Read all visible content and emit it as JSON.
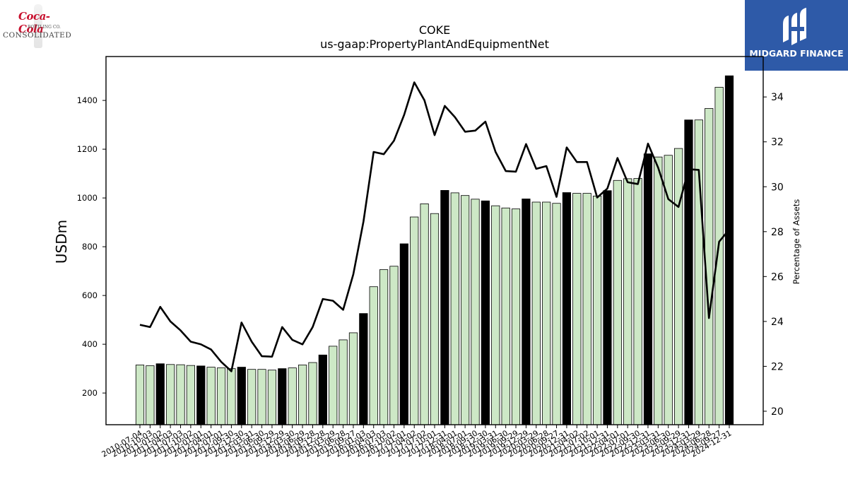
{
  "logos": {
    "left_script": "Coca-Cola",
    "left_sub": "BOTTLING CO.",
    "left_word": "CONSOLIDATED",
    "right_brand": "MIDGARD FINANCE"
  },
  "chart_data": {
    "type": "bar",
    "title": "COKE",
    "subtitle": "us-gaap:PropertyPlantAndEquipmentNet",
    "ylabel": "USDm",
    "y2label": "Percentage of Assets",
    "ylim": [
      70,
      1580
    ],
    "y2lim": [
      19.4,
      35.8
    ],
    "yticks": [
      200,
      400,
      600,
      800,
      1000,
      1200,
      1400
    ],
    "y2ticks": [
      20,
      22,
      24,
      26,
      28,
      30,
      32,
      34
    ],
    "colors": {
      "bar_light": "#cde8c6",
      "bar_dark": "#000000",
      "line": "#000000"
    },
    "categories": [
      "2010-07-04",
      "2010-10-03",
      "2011-01-02",
      "2011-04-03",
      "2011-07-03",
      "2011-10-02",
      "2012-01-01",
      "2012-04-01",
      "2012-07-01",
      "2012-09-30",
      "2012-12-30",
      "2013-03-31",
      "2013-06-30",
      "2013-09-29",
      "2013-12-29",
      "2014-03-30",
      "2014-06-29",
      "2014-09-28",
      "2014-12-28",
      "2015-03-29",
      "2015-06-28",
      "2015-09-27",
      "2016-01-03",
      "2016-04-03",
      "2016-07-03",
      "2016-10-02",
      "2017-01-01",
      "2017-04-02",
      "2017-07-02",
      "2017-10-01",
      "2017-12-31",
      "2018-04-01",
      "2018-07-01",
      "2018-09-30",
      "2018-12-30",
      "2019-03-31",
      "2019-06-30",
      "2019-09-29",
      "2019-12-29",
      "2020-03-29",
      "2020-06-28",
      "2020-09-27",
      "2020-12-31",
      "2021-04-02",
      "2021-07-02",
      "2021-10-01",
      "2021-12-31",
      "2022-04-01",
      "2022-07-01",
      "2022-09-30",
      "2022-12-31",
      "2023-03-31",
      "2023-06-30",
      "2023-09-29",
      "2023-12-31",
      "2024-03-29",
      "2024-06-28",
      "2024-09-27",
      "2024-12-31"
    ],
    "tick_labels": [
      "2010-07-04",
      "2010-10-03",
      "2011-01-02",
      "2011-04-03",
      "2011-07-03",
      "2011-10-02",
      "2012-01-01",
      "2012-04-01",
      "2012-07-01",
      "2012-09-30",
      "2012-12-30",
      "2013-03-31",
      "2013-06-30",
      "2013-09-29",
      "2013-12-29",
      "2014-03-30",
      "2014-06-29",
      "2014-09-28",
      "2014-12-28",
      "2015-03-29",
      "2015-06-28",
      "2015-09-27",
      "2016-01-03",
      "2016-04-03",
      "2016-07-03",
      "2016-10-02",
      "2017-01-01",
      "2017-04-02",
      "2017-07-02",
      "2017-10-01",
      "2017-12-31",
      "2018-04-01",
      "2018-07-01",
      "2018-09-30",
      "2018-12-30",
      "2019-03-31",
      "2019-06-30",
      "2019-09-29",
      "2019-12-29",
      "2020-03-29",
      "2020-06-28",
      "2020-09-27",
      "2020-12-31",
      "2021-04-02",
      "2021-07-02",
      "2021-10-01",
      "2021-12-31",
      "2022-04-01",
      "2022-07-01",
      "2022-09-30",
      "2022-12-31",
      "2023-03-31",
      "2023-06-30",
      "2023-09-29",
      "2023-12-31",
      "2024-03-29",
      "2024-06-28",
      "2024-09-27",
      "2024-12-31"
    ],
    "series": [
      {
        "name": "PropertyPlantAndEquipmentNet",
        "axis": "left",
        "type": "bar",
        "values": [
          315,
          312,
          320,
          317,
          316,
          313,
          311,
          306,
          303,
          300,
          306,
          297,
          297,
          294,
          300,
          303,
          315,
          325,
          356,
          392,
          418,
          447,
          526,
          636,
          706,
          720,
          812,
          922,
          976,
          936,
          1031,
          1021,
          1010,
          995,
          988,
          968,
          959,
          955,
          996,
          983,
          983,
          978,
          1022,
          1019,
          1019,
          1008,
          1030,
          1072,
          1079,
          1080,
          1181,
          1168,
          1175,
          1203,
          1320,
          1320,
          1367,
          1454,
          1501
        ],
        "dark": [
          false,
          false,
          true,
          false,
          false,
          false,
          true,
          false,
          false,
          false,
          true,
          false,
          false,
          false,
          true,
          false,
          false,
          false,
          true,
          false,
          false,
          false,
          true,
          false,
          false,
          false,
          true,
          false,
          false,
          false,
          true,
          false,
          false,
          false,
          true,
          false,
          false,
          false,
          true,
          false,
          false,
          false,
          true,
          false,
          false,
          false,
          true,
          false,
          false,
          false,
          true,
          false,
          false,
          false,
          true,
          false,
          false,
          false,
          true
        ]
      },
      {
        "name": "Percentage of Assets",
        "axis": "right",
        "type": "line",
        "values": [
          23.85,
          23.75,
          24.65,
          24.0,
          23.6,
          23.1,
          22.98,
          22.75,
          22.2,
          21.78,
          23.95,
          23.1,
          22.45,
          22.43,
          23.75,
          23.18,
          22.98,
          23.75,
          25.0,
          24.92,
          24.52,
          26.1,
          28.45,
          31.55,
          31.45,
          32.05,
          33.2,
          34.65,
          33.85,
          32.3,
          33.6,
          33.1,
          32.45,
          32.5,
          32.9,
          31.55,
          30.7,
          30.67,
          31.9,
          30.8,
          30.92,
          29.55,
          31.75,
          31.1,
          31.1,
          29.52,
          29.92,
          31.28,
          30.2,
          30.12,
          31.92,
          30.85,
          29.45,
          29.1,
          30.78,
          30.75,
          24.15,
          27.55,
          28.1
        ]
      }
    ],
    "grid": false,
    "legend": "none"
  }
}
